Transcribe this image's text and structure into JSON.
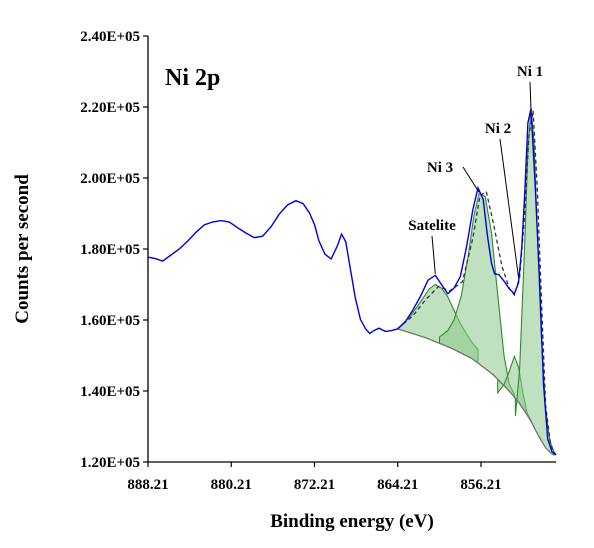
{
  "chart_data": {
    "type": "line",
    "title": "",
    "panel_label": "Ni 2p",
    "xlabel": "Binding energy (eV)",
    "ylabel": "Counts per second",
    "x_reversed": true,
    "xlim": [
      849.0,
      888.21
    ],
    "ylim": [
      120000,
      240000
    ],
    "x_ticks": [
      888.21,
      880.21,
      872.21,
      864.21,
      856.21
    ],
    "x_tick_labels": [
      "888.21",
      "880.21",
      "872.21",
      "864.21",
      "856.21"
    ],
    "y_ticks": [
      120000,
      140000,
      160000,
      180000,
      200000,
      220000,
      240000
    ],
    "y_tick_labels": [
      "1.20E+05",
      "1.40E+05",
      "1.60E+05",
      "1.80E+05",
      "2.00E+05",
      "2.20E+05",
      "2.40E+05"
    ],
    "grid": false,
    "colors": {
      "raw": "#0000dd",
      "envelope": "#333333",
      "component_fill": "#8cc98a",
      "component_line": "#2e8b2e",
      "background": "#777777"
    },
    "series": [
      {
        "role": "raw",
        "x": [
          888.21,
          887.5,
          886.8,
          886.0,
          885.2,
          884.4,
          883.6,
          882.8,
          882.0,
          881.2,
          880.4,
          879.6,
          878.8,
          878.0,
          877.2,
          876.4,
          875.6,
          874.8,
          874.0,
          873.3,
          872.7,
          872.2,
          871.8,
          871.2,
          870.6,
          870.0,
          869.6,
          869.2,
          868.8,
          868.3,
          867.8,
          867.3,
          866.9,
          866.5,
          866.0,
          865.4,
          864.8,
          864.21,
          863.5,
          862.8,
          862.0,
          861.3,
          860.6,
          860.0,
          859.4,
          858.8,
          858.2,
          857.6,
          857.0,
          856.5,
          856.0,
          855.6,
          855.2,
          854.9,
          854.5,
          854.0,
          853.5,
          853.0,
          852.6,
          852.3,
          852.0,
          851.7,
          851.4,
          851.0,
          850.6,
          850.2,
          849.8,
          849.4,
          849.0
        ],
        "y": [
          177700,
          177300,
          176600,
          178300,
          180000,
          182200,
          184700,
          186800,
          187600,
          188000,
          187600,
          186000,
          184500,
          183200,
          183600,
          186200,
          189800,
          192400,
          193600,
          192800,
          190200,
          186800,
          182400,
          178500,
          177200,
          181000,
          184200,
          182000,
          175000,
          166400,
          160200,
          157500,
          156200,
          157000,
          157700,
          156800,
          157000,
          157500,
          159400,
          162600,
          166800,
          171200,
          172600,
          170000,
          167400,
          169000,
          172200,
          180500,
          191000,
          197200,
          194000,
          184000,
          176000,
          173000,
          172800,
          171000,
          168800,
          167400,
          170500,
          180000,
          196000,
          215500,
          219500,
          198000,
          172000,
          142000,
          126500,
          123000,
          122000
        ]
      },
      {
        "role": "envelope",
        "x": [
          864.21,
          862.8,
          861.5,
          860.3,
          859.2,
          858.0,
          857.0,
          856.3,
          855.7,
          855.0,
          854.2,
          853.5,
          853.0,
          852.5,
          852.0,
          851.6,
          851.2,
          850.8,
          850.4,
          850.0,
          849.5,
          849.0
        ],
        "y": [
          157600,
          161000,
          165800,
          169400,
          168200,
          170800,
          183000,
          195000,
          196200,
          187000,
          175200,
          169000,
          167000,
          172000,
          190000,
          212000,
          219000,
          197000,
          166000,
          136000,
          124500,
          122000
        ]
      },
      {
        "role": "component",
        "name": "Satelite",
        "x": [
          864.21,
          863.0,
          862.0,
          861.2,
          860.6,
          860.0,
          859.4,
          858.8,
          858.2,
          857.5,
          857.0,
          856.5
        ],
        "y": [
          157600,
          161000,
          165200,
          168700,
          170000,
          169000,
          166500,
          162800,
          159000,
          155600,
          153400,
          151600
        ]
      },
      {
        "role": "component",
        "name": "Ni 3",
        "x": [
          860.2,
          859.4,
          858.8,
          858.1,
          857.4,
          856.9,
          856.4,
          855.8,
          855.2,
          854.6,
          854.0,
          853.5,
          853.0
        ],
        "y": [
          155200,
          157000,
          160000,
          166800,
          178800,
          189200,
          195600,
          194800,
          184500,
          167200,
          150000,
          142000,
          139000
        ]
      },
      {
        "role": "component",
        "name": "Ni 2",
        "x": [
          854.6,
          854.0,
          853.5,
          853.0,
          852.6,
          852.2,
          851.8,
          851.3
        ],
        "y": [
          139500,
          141800,
          145500,
          149800,
          146800,
          139800,
          134000,
          131000
        ]
      },
      {
        "role": "component",
        "name": "Ni 1",
        "x": [
          852.9,
          852.5,
          852.0,
          851.7,
          851.4,
          851.1,
          850.8,
          850.4,
          850.0,
          849.6,
          849.2
        ],
        "y": [
          133000,
          146000,
          182000,
          208000,
          219500,
          210000,
          185000,
          155000,
          135000,
          126000,
          123000
        ]
      },
      {
        "role": "background",
        "x": [
          864.21,
          861.5,
          859.0,
          857.0,
          855.0,
          853.5,
          852.5,
          851.5,
          850.7,
          850.0,
          849.3
        ],
        "y": [
          157500,
          155000,
          152000,
          149000,
          144500,
          140000,
          136500,
          132000,
          127500,
          124000,
          122000
        ]
      }
    ],
    "annotations": [
      {
        "text": "Ni 1",
        "points_to_x": 851.4,
        "points_to_y": 219000
      },
      {
        "text": "Ni 2",
        "points_to_x": 852.6,
        "points_to_y": 172000
      },
      {
        "text": "Ni 3",
        "points_to_x": 856.4,
        "points_to_y": 196000
      },
      {
        "text": "Satelite",
        "points_to_x": 860.6,
        "points_to_y": 173000
      }
    ]
  }
}
